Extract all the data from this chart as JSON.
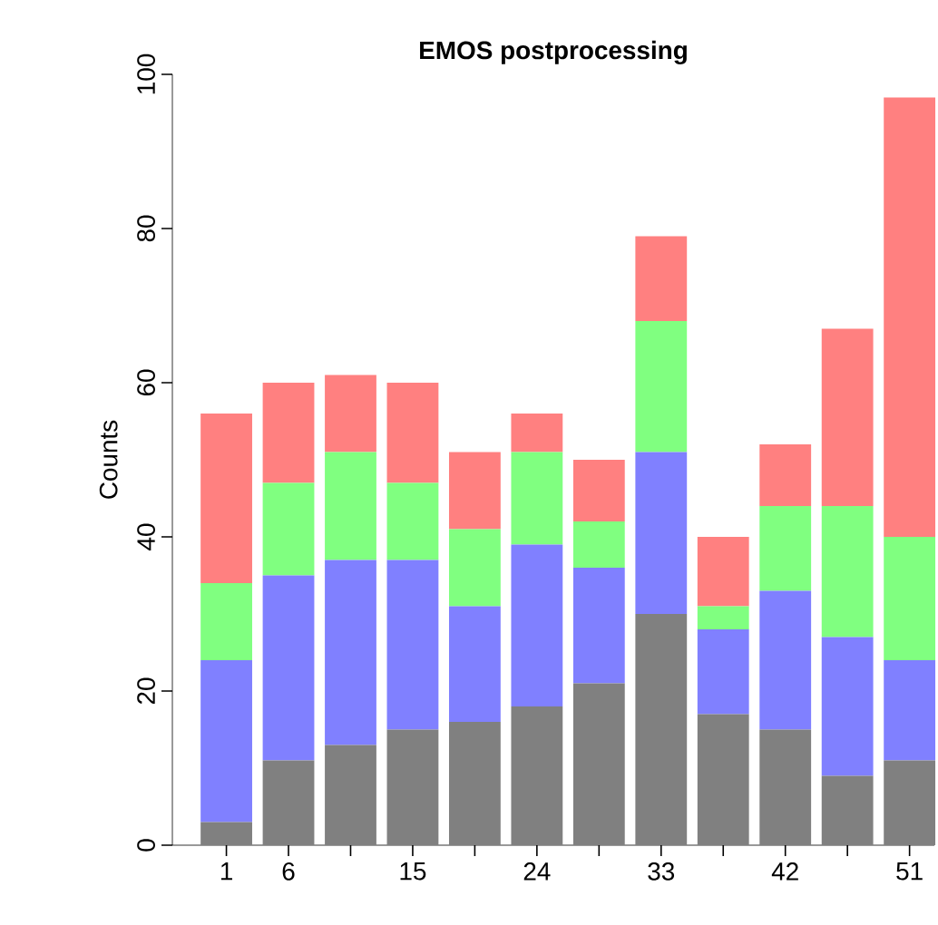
{
  "chart_data": {
    "type": "bar",
    "title": "EMOS postprocessing",
    "ylabel": "Counts",
    "stacked": true,
    "categories": [
      "1",
      "6",
      null,
      "15",
      null,
      "24",
      null,
      "33",
      null,
      "42",
      null,
      "51"
    ],
    "ylim": [
      0,
      100
    ],
    "yticks": [
      0,
      20,
      40,
      60,
      80,
      100
    ],
    "series": [
      {
        "color": "#808080",
        "values": [
          3,
          11,
          13,
          15,
          16,
          18,
          21,
          30,
          17,
          15,
          9,
          11
        ]
      },
      {
        "color": "#8080ff",
        "values": [
          21,
          24,
          24,
          22,
          15,
          21,
          15,
          21,
          11,
          18,
          18,
          13
        ]
      },
      {
        "color": "#80ff80",
        "values": [
          10,
          12,
          14,
          10,
          10,
          12,
          6,
          17,
          3,
          11,
          17,
          16
        ]
      },
      {
        "color": "#ff8080",
        "values": [
          22,
          13,
          10,
          13,
          10,
          5,
          8,
          11,
          9,
          8,
          23,
          57
        ]
      }
    ]
  }
}
